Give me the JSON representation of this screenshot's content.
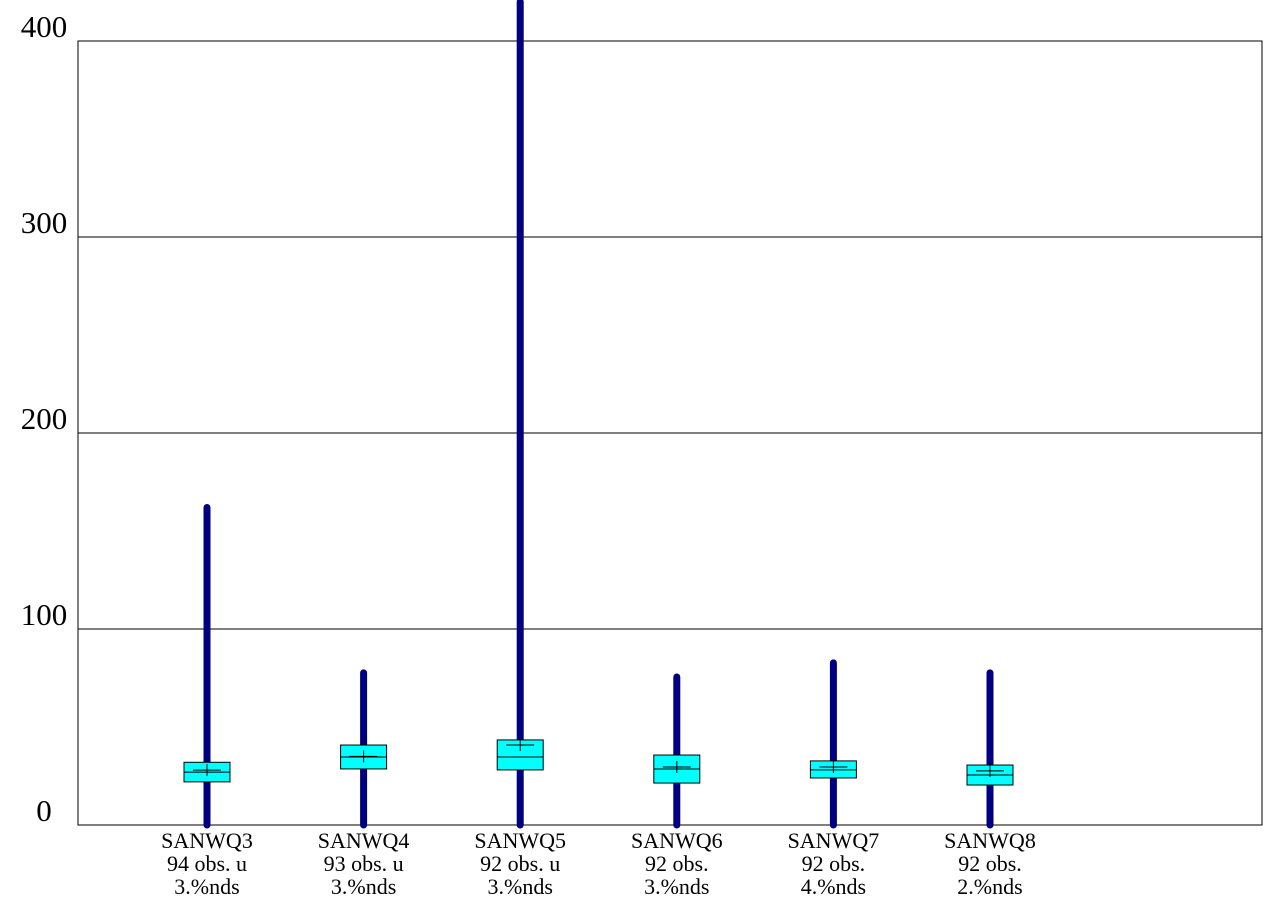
{
  "chart_data": {
    "type": "box",
    "categories": [
      "SANWQ3",
      "SANWQ4",
      "SANWQ5",
      "SANWQ6",
      "SANWQ7",
      "SANWQ8"
    ],
    "notes": [
      [
        "94 obs. u",
        "3.%nds"
      ],
      [
        "93 obs. u",
        "3.%nds"
      ],
      [
        "92 obs. u",
        "3.%nds"
      ],
      [
        "92 obs.",
        "3.%nds"
      ],
      [
        "92 obs.",
        "4.%nds"
      ],
      [
        "92 obs.",
        "2.%nds"
      ]
    ],
    "boxes": [
      {
        "min": 0,
        "q1": 22,
        "median": 27,
        "q3": 32,
        "max": 162,
        "mean": 28
      },
      {
        "min": 0,
        "q1": 28.6,
        "median": 34.7,
        "q3": 40.8,
        "max": 77.6,
        "mean": 35
      },
      {
        "min": 0,
        "q1": 28.1,
        "median": 34.7,
        "q3": 43.4,
        "max": 420,
        "mean": 40.8
      },
      {
        "min": 0,
        "q1": 21.4,
        "median": 28.6,
        "q3": 35.7,
        "max": 75.5,
        "mean": 29.6
      },
      {
        "min": 0,
        "q1": 24,
        "median": 28.1,
        "q3": 32.7,
        "max": 82.7,
        "mean": 29.6
      },
      {
        "min": 0,
        "q1": 20.4,
        "median": 25.5,
        "q3": 30.6,
        "max": 77.6,
        "mean": 27.6
      }
    ],
    "whisker_color": "#000080",
    "box_color": "#00ffff",
    "ylim": [
      0,
      400
    ],
    "yticks": [
      0,
      100,
      200,
      300,
      400
    ],
    "grid": true
  }
}
